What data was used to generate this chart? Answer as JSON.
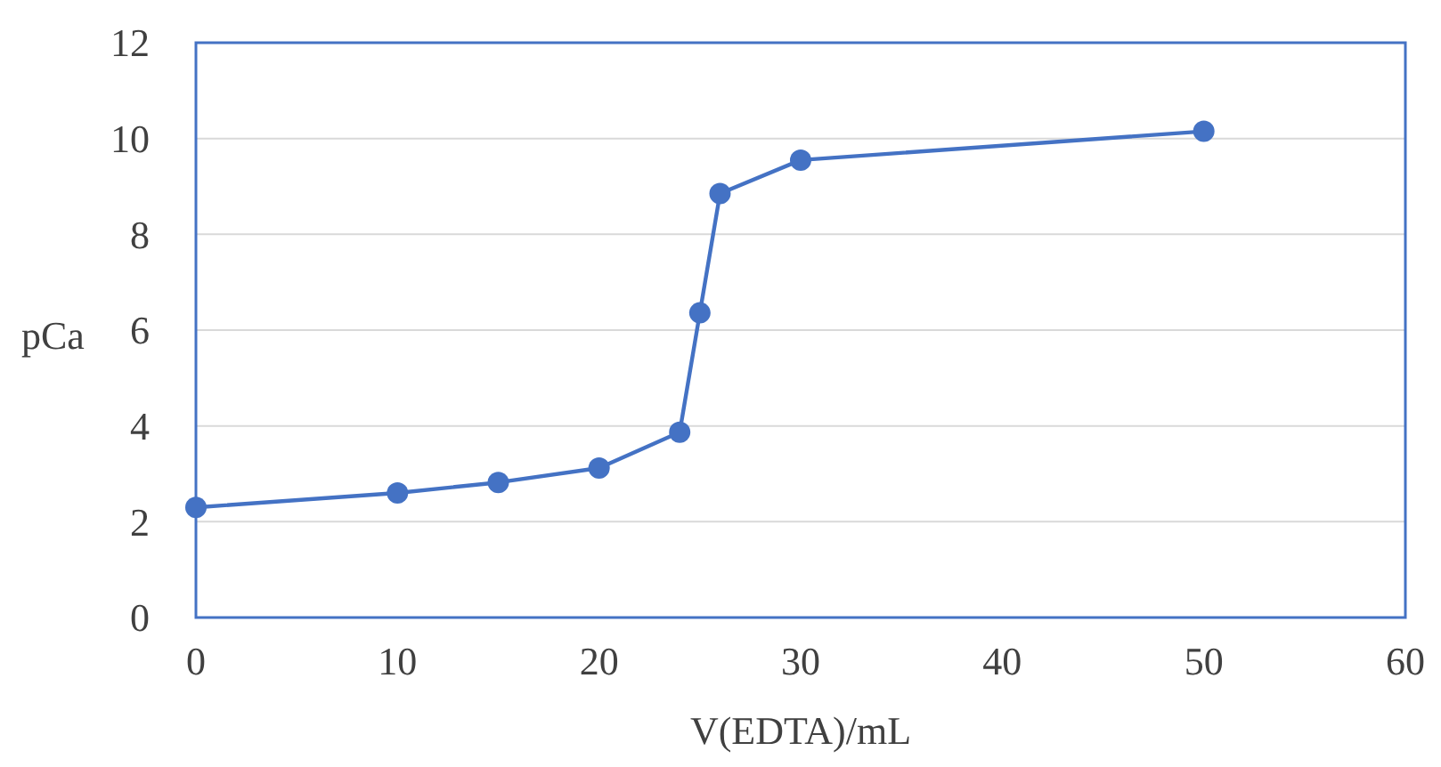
{
  "chart_data": {
    "type": "line",
    "xlabel": "V(EDTA)/mL",
    "ylabel": "pCa",
    "x": [
      0,
      10,
      15,
      20,
      24,
      25,
      26,
      30,
      50
    ],
    "series": [
      {
        "color": "#4472c4",
        "values": [
          2.3,
          2.6,
          2.82,
          3.12,
          3.87,
          6.36,
          8.85,
          9.55,
          10.15
        ]
      }
    ],
    "xlim": [
      0,
      60
    ],
    "xticks": [
      0,
      10,
      20,
      30,
      40,
      50,
      60
    ],
    "ylim": [
      0,
      12
    ],
    "yticks": [
      0,
      2,
      4,
      6,
      8,
      10,
      12
    ],
    "grid": "y",
    "marker": "circle",
    "line_style": "solid"
  }
}
